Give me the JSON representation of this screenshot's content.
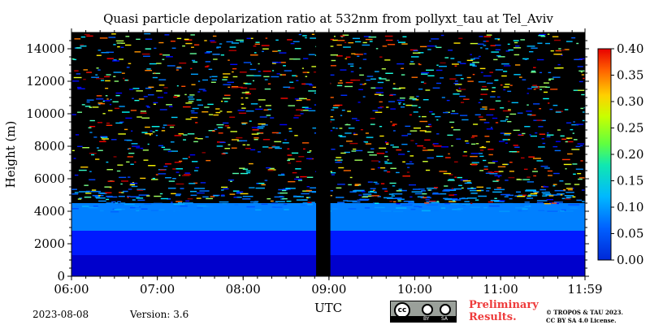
{
  "chart_data": {
    "type": "heatmap",
    "title": "Quasi particle depolarization ratio at 532nm from pollyxt_tau at Tel_Aviv",
    "xlabel": "UTC",
    "ylabel": "Height (m)",
    "x_ticks": [
      "06:00",
      "07:00",
      "08:00",
      "09:00",
      "10:00",
      "11:00",
      "11:59"
    ],
    "y_ticks": [
      "0",
      "2000",
      "4000",
      "6000",
      "8000",
      "10000",
      "12000",
      "14000"
    ],
    "ylim": [
      0,
      15000
    ],
    "colorbar": {
      "ticks": [
        "0.00",
        "0.05",
        "0.10",
        "0.15",
        "0.20",
        "0.25",
        "0.30",
        "0.35",
        "0.40"
      ],
      "range": [
        0.0,
        0.4
      ],
      "colormap": "jet"
    },
    "data_gap_utc": [
      "08:51",
      "09:01"
    ],
    "description_layers": [
      {
        "height_range_m": [
          0,
          1300
        ],
        "value": 0.03
      },
      {
        "height_range_m": [
          1300,
          2800
        ],
        "value": 0.06
      },
      {
        "height_range_m": [
          2800,
          4500
        ],
        "value": 0.1
      },
      {
        "height_range_m": [
          4500,
          15000
        ],
        "value": "sparse noise 0.05-0.40"
      }
    ]
  },
  "footer": {
    "date": "2023-08-08",
    "version": "Version: 3.6",
    "preliminary_line1": "Preliminary",
    "preliminary_line2": "Results.",
    "license_line1": "© TROPOS & TAU 2023.",
    "license_line2": "CC BY SA 4.0 License.",
    "cc_labels": [
      "cc",
      "BY",
      "SA"
    ]
  },
  "colors": {
    "background": "#000000",
    "low": "#1f4fe0",
    "mid": "#2aa8ff",
    "high": "#ff2a00"
  }
}
